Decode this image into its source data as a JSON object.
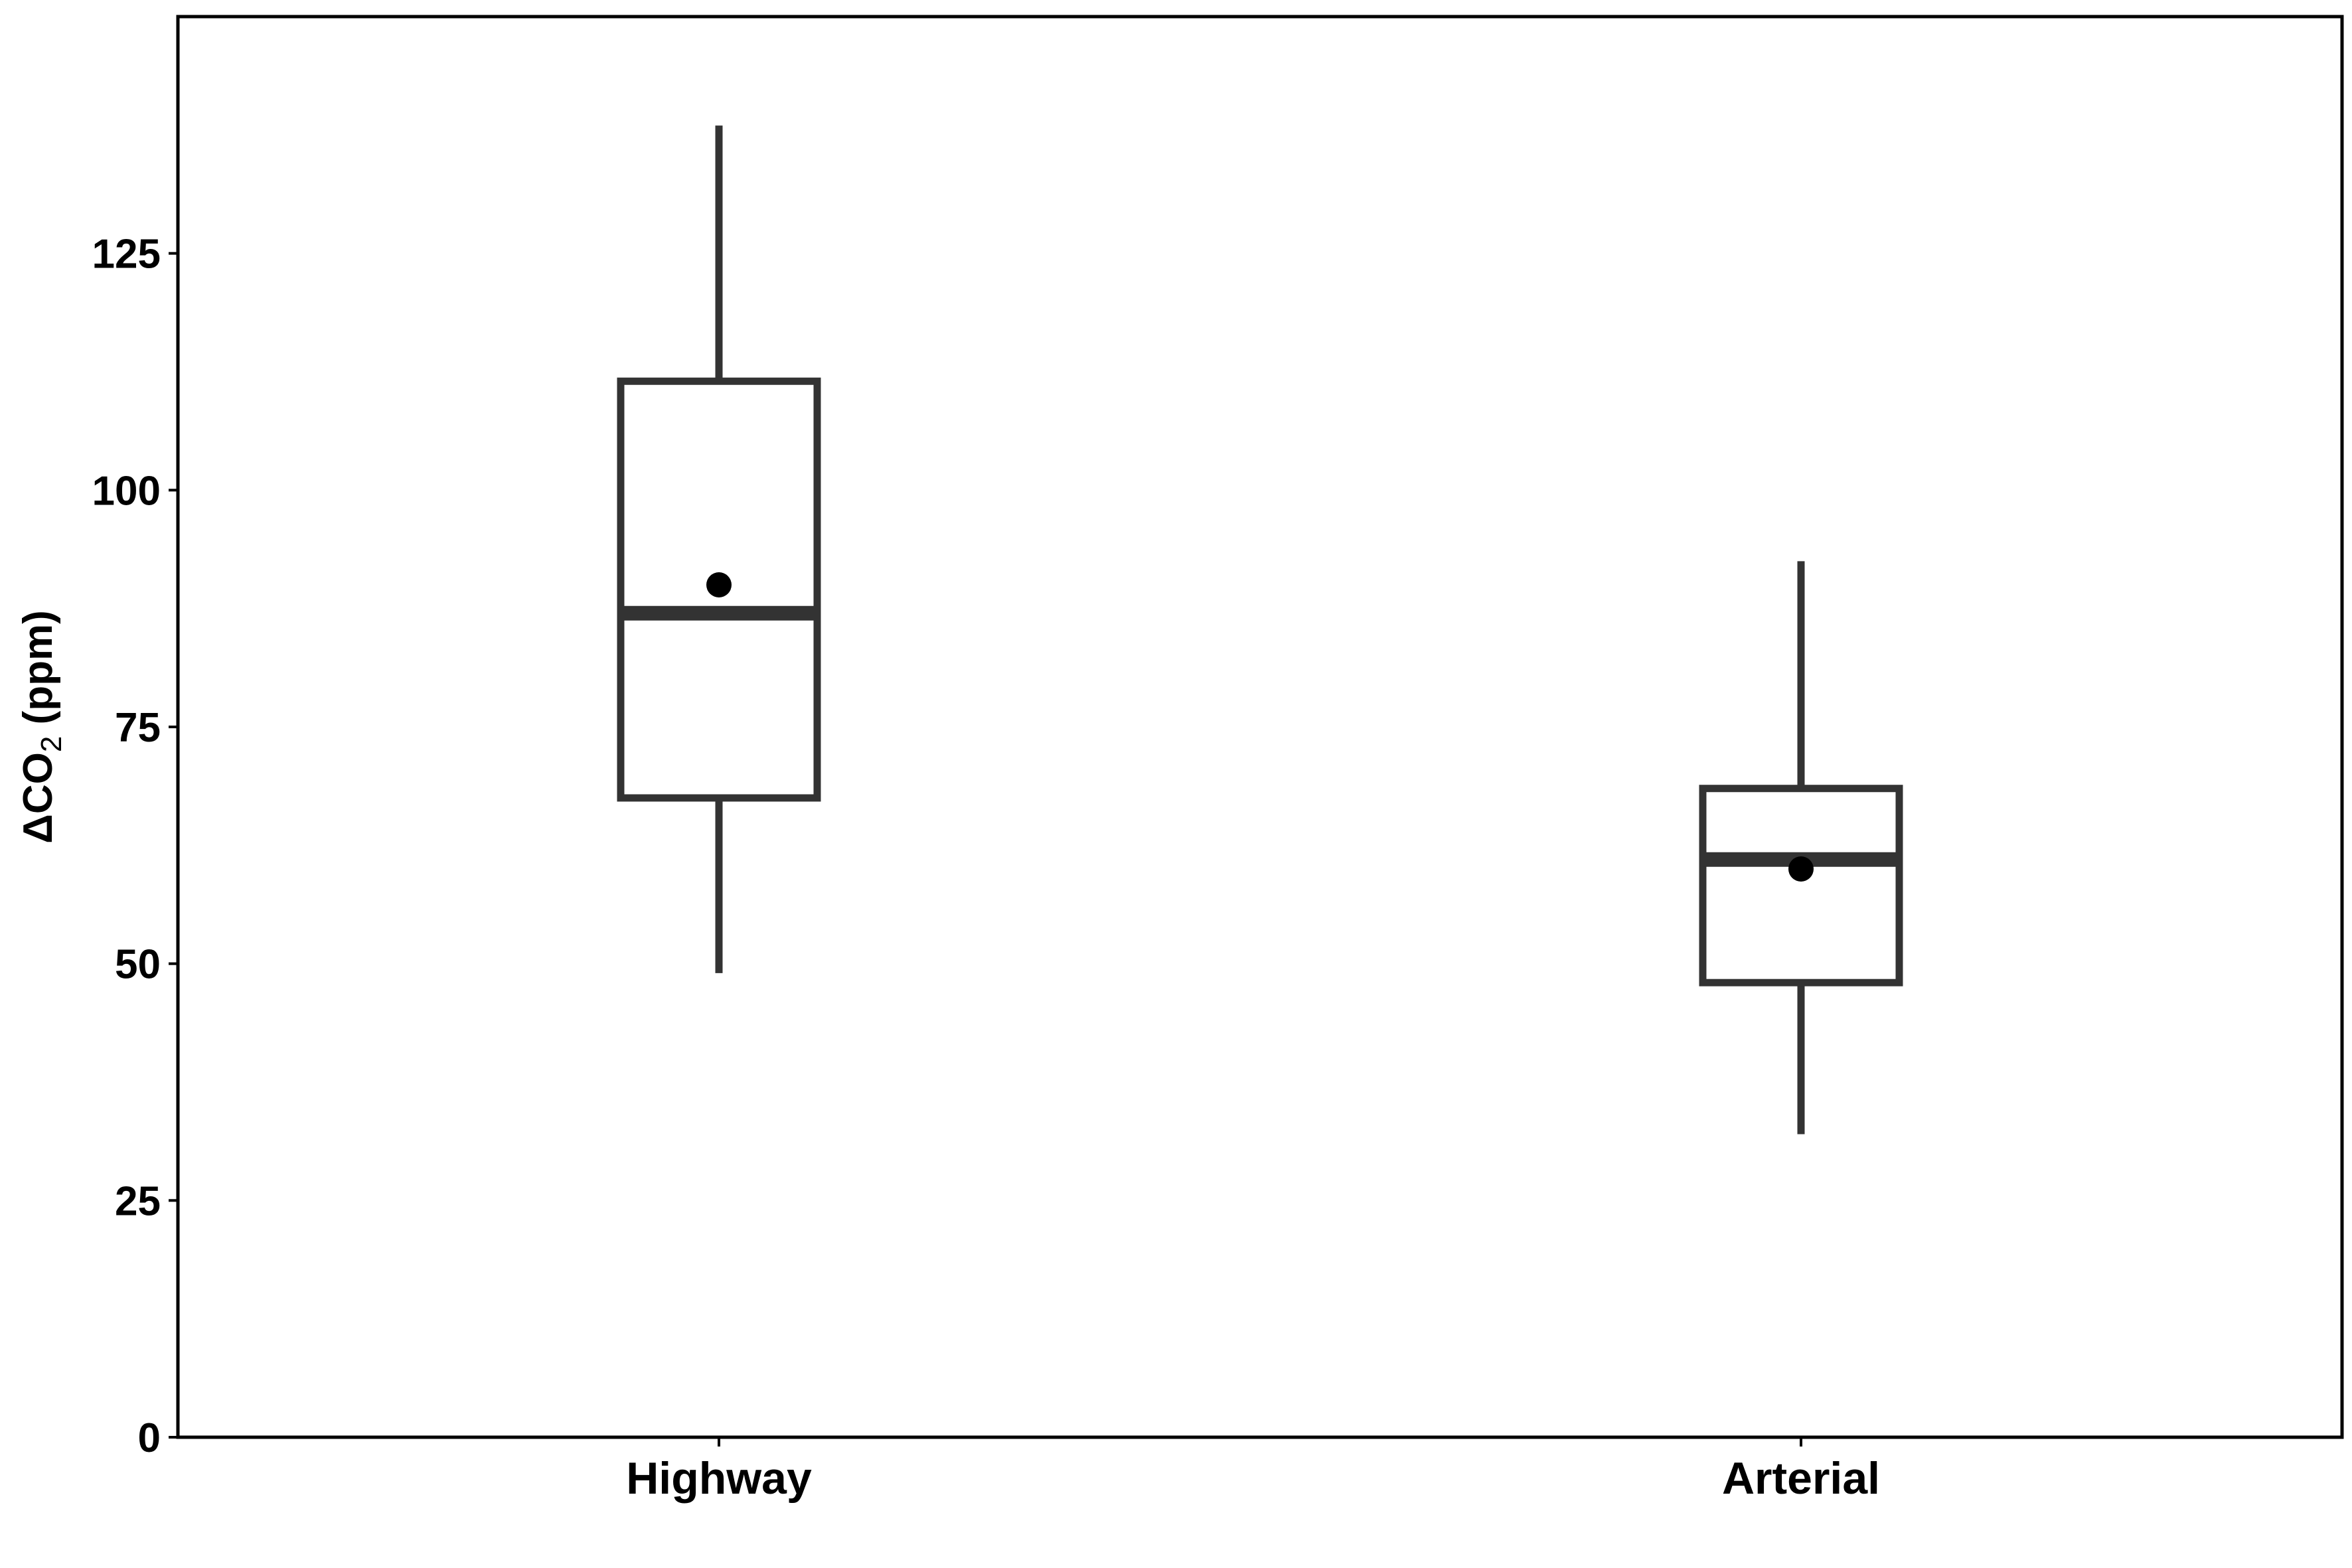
{
  "chart_data": {
    "type": "boxplot",
    "title": "",
    "xlabel": "",
    "ylabel": {
      "prefix": "Δ",
      "main": "CO",
      "subscript": "2",
      "suffix": " (ppm)"
    },
    "ylim": [
      0,
      150
    ],
    "yticks": [
      0,
      25,
      50,
      75,
      100,
      125
    ],
    "grid": false,
    "legend": "none",
    "categories": [
      "Highway",
      "Arterial"
    ],
    "boxes": [
      {
        "category": "Highway",
        "whisker_low": 49,
        "q1": 67.5,
        "median": 87,
        "q3": 111.5,
        "whisker_high": 138.5,
        "mean": 90
      },
      {
        "category": "Arterial",
        "whisker_low": 32,
        "q1": 48,
        "median": 61,
        "q3": 68.5,
        "whisker_high": 92.5,
        "mean": 60
      }
    ],
    "colors": {
      "box_stroke": "#333333",
      "mean_marker": "#000000",
      "axis": "#000000",
      "background": "#ffffff"
    }
  }
}
